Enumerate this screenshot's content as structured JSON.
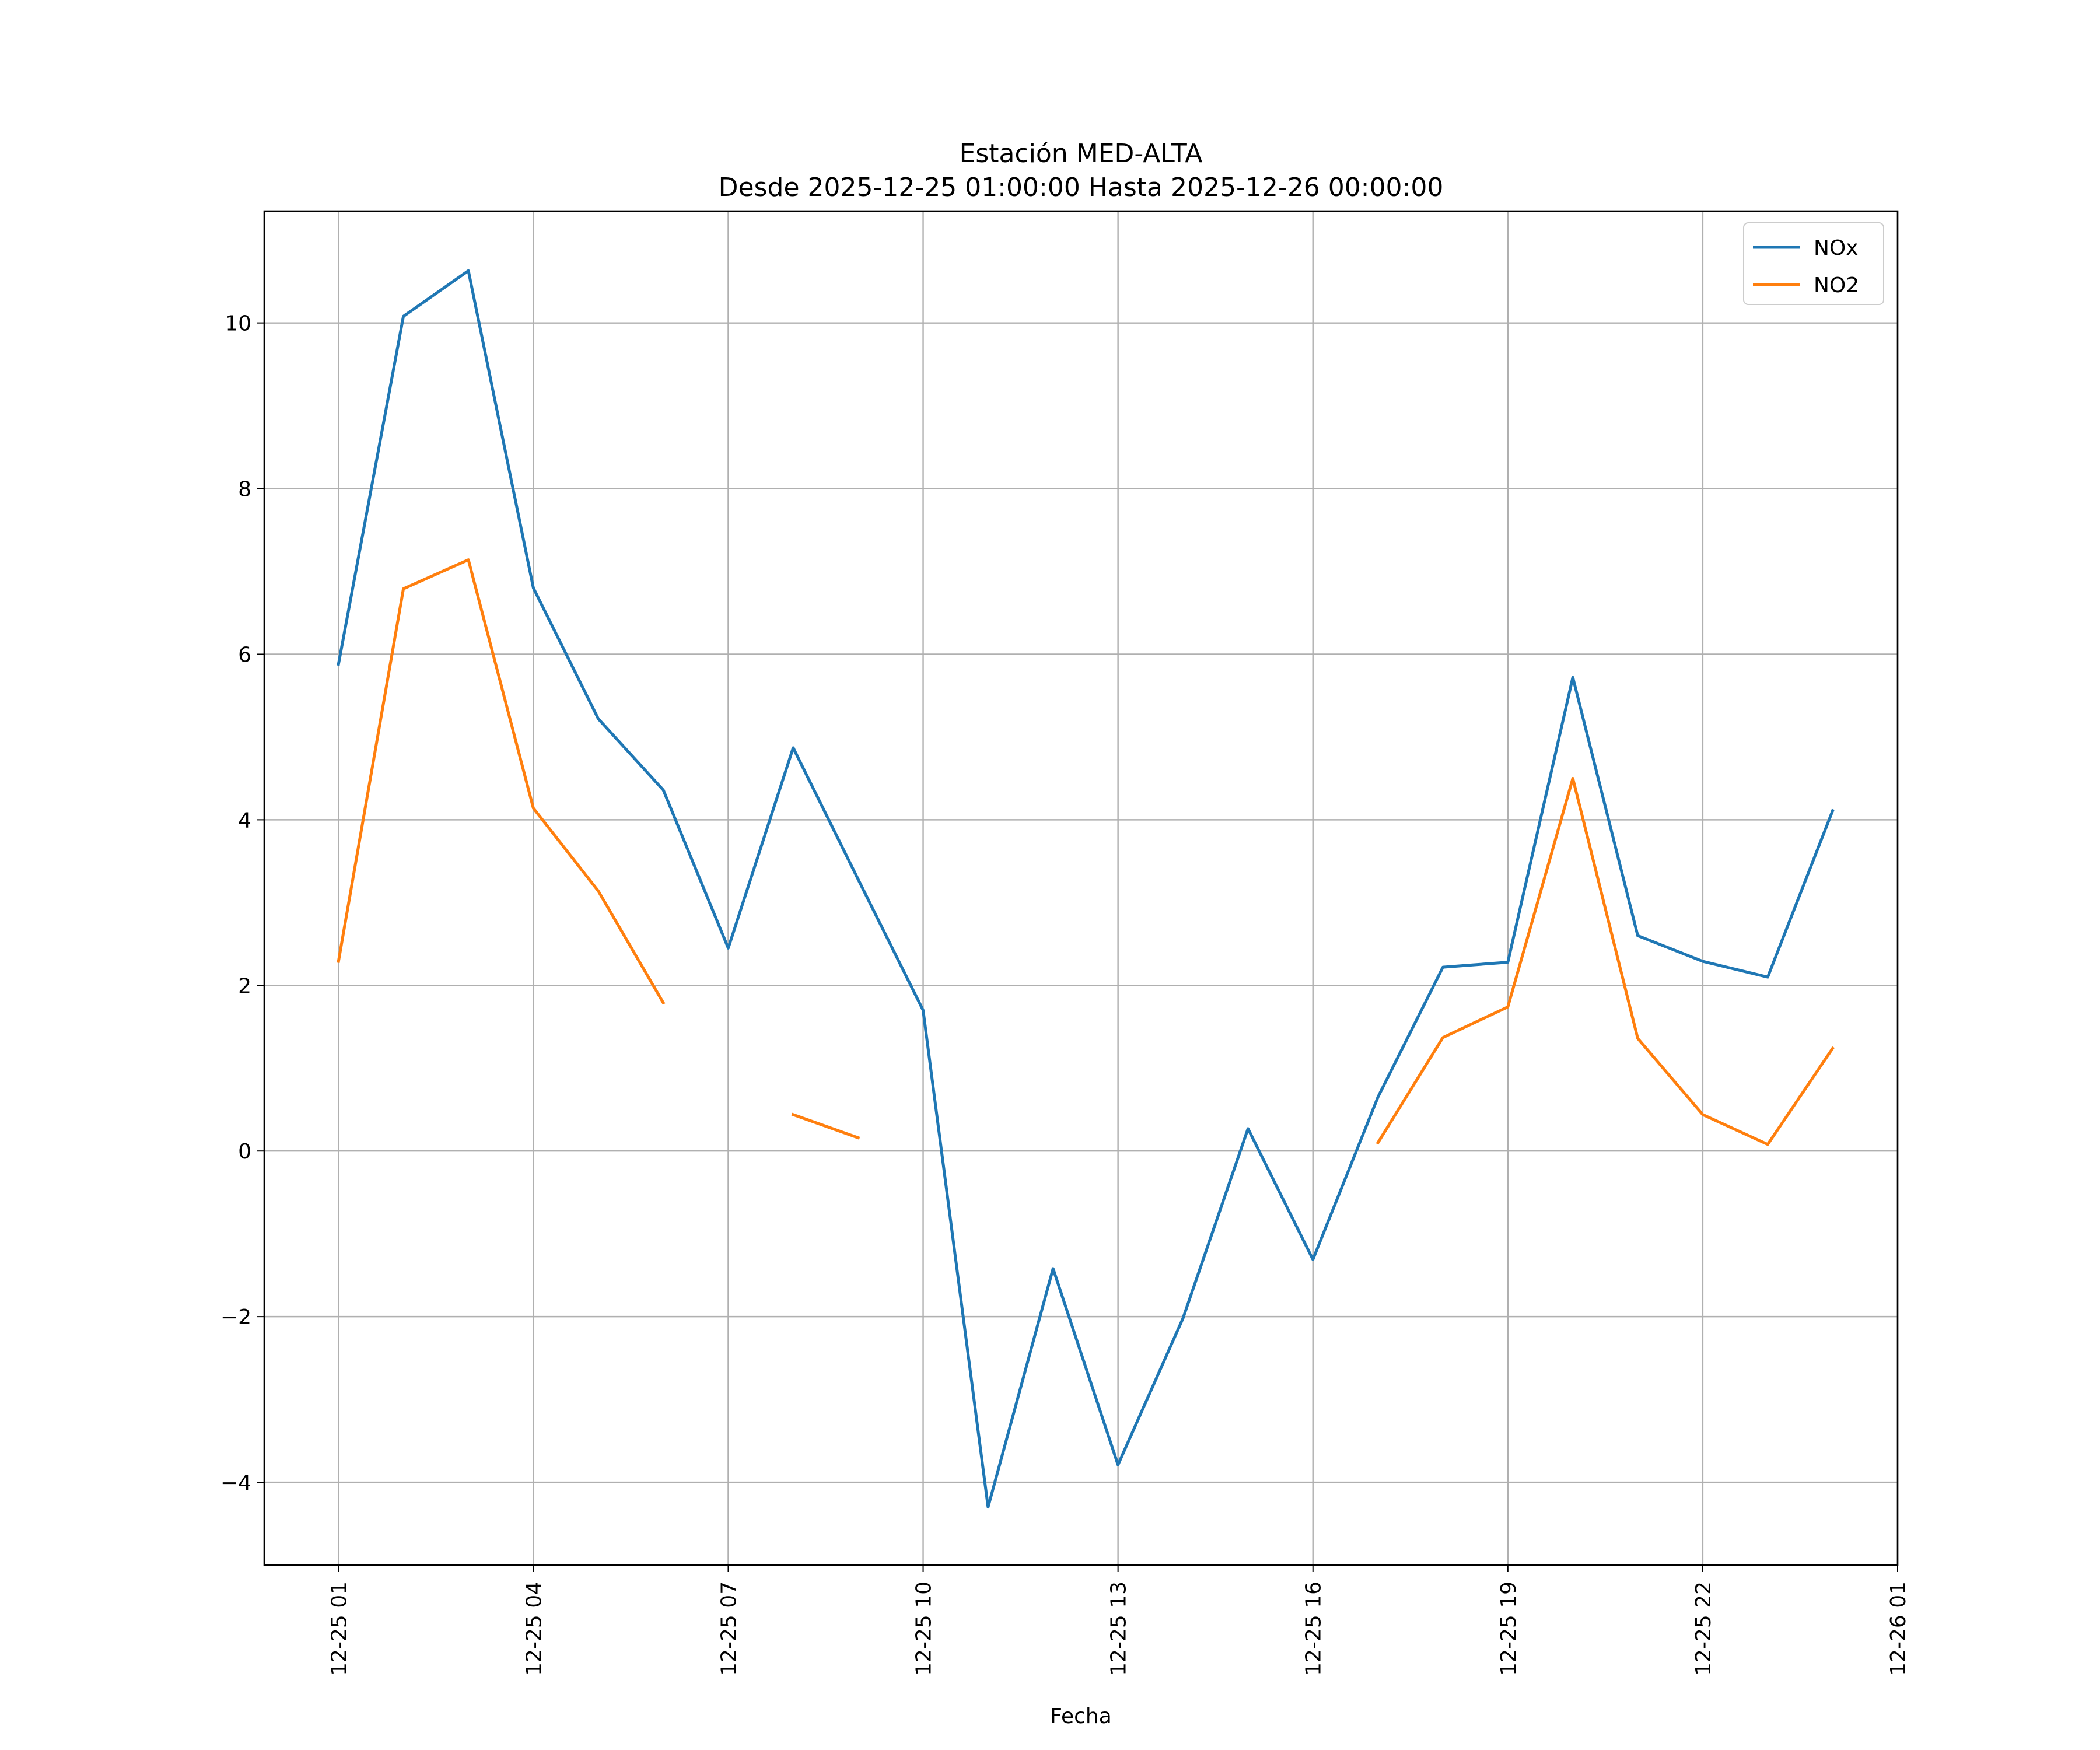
{
  "chart_data": {
    "type": "line",
    "title": "Estación MED-ALTA",
    "subtitle": "Desde 2025-12-25 01:00:00 Hasta 2025-12-26 00:00:00",
    "xlabel": "Fecha",
    "ylabel": "",
    "x_hours": [
      1,
      2,
      3,
      4,
      5,
      6,
      7,
      8,
      9,
      10,
      11,
      12,
      13,
      14,
      15,
      16,
      17,
      18,
      19,
      20,
      21,
      22,
      23,
      24
    ],
    "xlim_hours": [
      -0.1429,
      25.0
    ],
    "ylim": [
      -5.0,
      11.35
    ],
    "xticks": [
      {
        "hour": 1,
        "label": "12-25 01"
      },
      {
        "hour": 4,
        "label": "12-25 04"
      },
      {
        "hour": 7,
        "label": "12-25 07"
      },
      {
        "hour": 10,
        "label": "12-25 10"
      },
      {
        "hour": 13,
        "label": "12-25 13"
      },
      {
        "hour": 16,
        "label": "12-25 16"
      },
      {
        "hour": 19,
        "label": "12-25 19"
      },
      {
        "hour": 22,
        "label": "12-25 22"
      },
      {
        "hour": 25,
        "label": "12-26 01"
      }
    ],
    "yticks": [
      {
        "value": -4,
        "label": "−4"
      },
      {
        "value": -2,
        "label": "−2"
      },
      {
        "value": 0,
        "label": "0"
      },
      {
        "value": 2,
        "label": "2"
      },
      {
        "value": 4,
        "label": "4"
      },
      {
        "value": 6,
        "label": "6"
      },
      {
        "value": 8,
        "label": "8"
      },
      {
        "value": 10,
        "label": "10"
      }
    ],
    "grid": true,
    "legend_position": "top-right",
    "series": [
      {
        "name": "NOx",
        "color": "#1f77b4",
        "values": [
          5.88,
          10.08,
          10.63,
          6.8,
          5.22,
          4.36,
          2.45,
          4.87,
          3.28,
          1.7,
          -4.3,
          -1.42,
          -3.79,
          -2.02,
          0.27,
          -1.31,
          0.65,
          2.22,
          2.28,
          5.72,
          2.6,
          2.29,
          2.1,
          4.11
        ]
      },
      {
        "name": "NO2",
        "color": "#ff7f0e",
        "values": [
          2.29,
          6.79,
          7.14,
          4.14,
          3.14,
          1.79,
          null,
          0.44,
          0.16,
          null,
          null,
          null,
          null,
          null,
          null,
          null,
          0.1,
          1.37,
          1.74,
          4.5,
          1.36,
          0.44,
          0.08,
          1.24
        ]
      }
    ]
  }
}
